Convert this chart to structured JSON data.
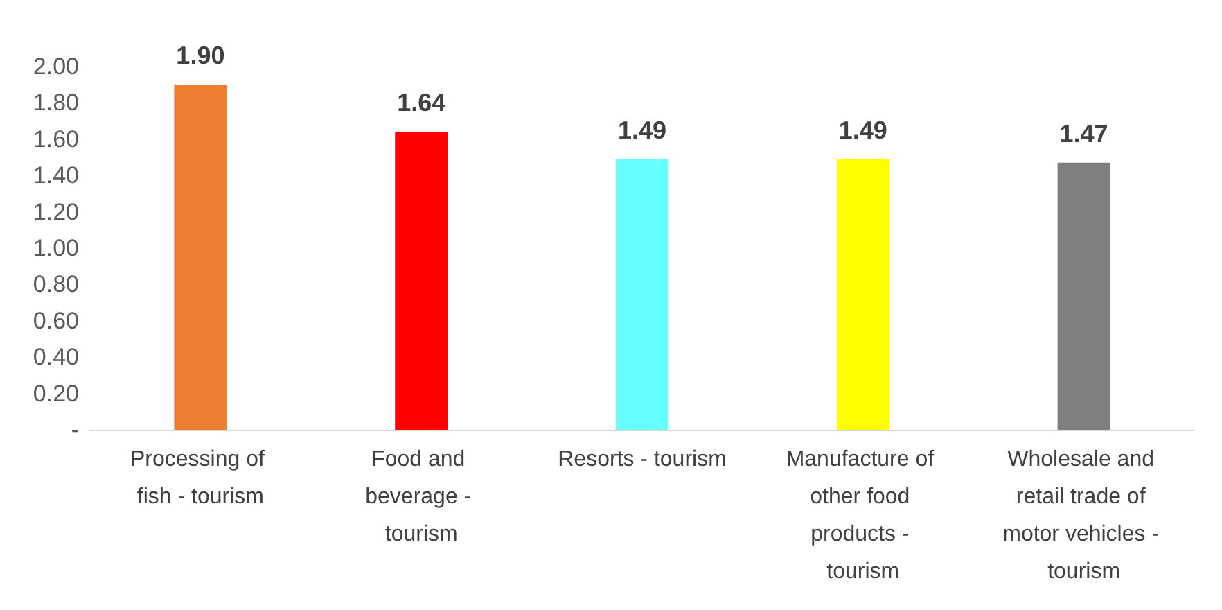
{
  "chart_data": {
    "type": "bar",
    "categories": [
      "Processing of fish - tourism",
      "Food and beverage - tourism",
      "Resorts - tourism",
      "Manufacture of other food products - tourism",
      "Wholesale and retail trade of motor vehicles - tourism"
    ],
    "values": [
      1.9,
      1.64,
      1.49,
      1.49,
      1.47
    ],
    "colors": [
      "#ed7d31",
      "#ff0000",
      "#66ffff",
      "#ffff00",
      "#7f7f7f"
    ],
    "value_labels": [
      "1.90",
      "1.64",
      "1.49",
      "1.49",
      "1.47"
    ],
    "ylim": [
      0,
      2
    ],
    "yticks": [
      {
        "value": 0,
        "label": "-"
      },
      {
        "value": 0.2,
        "label": "0.20"
      },
      {
        "value": 0.4,
        "label": "0.40"
      },
      {
        "value": 0.6,
        "label": "0.60"
      },
      {
        "value": 0.8,
        "label": "0.80"
      },
      {
        "value": 1,
        "label": "1.00"
      },
      {
        "value": 1.2,
        "label": "1.20"
      },
      {
        "value": 1.4,
        "label": "1.40"
      },
      {
        "value": 1.6,
        "label": "1.60"
      },
      {
        "value": 1.8,
        "label": "1.80"
      },
      {
        "value": 2,
        "label": "2.00"
      }
    ],
    "grid": false
  }
}
